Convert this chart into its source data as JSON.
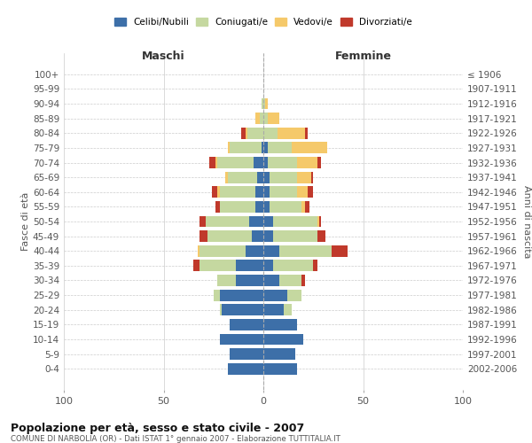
{
  "age_groups": [
    "0-4",
    "5-9",
    "10-14",
    "15-19",
    "20-24",
    "25-29",
    "30-34",
    "35-39",
    "40-44",
    "45-49",
    "50-54",
    "55-59",
    "60-64",
    "65-69",
    "70-74",
    "75-79",
    "80-84",
    "85-89",
    "90-94",
    "95-99",
    "100+"
  ],
  "birth_years": [
    "2002-2006",
    "1997-2001",
    "1992-1996",
    "1987-1991",
    "1982-1986",
    "1977-1981",
    "1972-1976",
    "1967-1971",
    "1962-1966",
    "1957-1961",
    "1952-1956",
    "1947-1951",
    "1942-1946",
    "1937-1941",
    "1932-1936",
    "1927-1931",
    "1922-1926",
    "1917-1921",
    "1912-1916",
    "1907-1911",
    "≤ 1906"
  ],
  "male": {
    "celibi": [
      18,
      17,
      22,
      17,
      21,
      22,
      14,
      14,
      9,
      6,
      7,
      4,
      4,
      3,
      5,
      1,
      0,
      0,
      0,
      0,
      0
    ],
    "coniugati": [
      0,
      0,
      0,
      0,
      1,
      3,
      9,
      18,
      23,
      22,
      22,
      18,
      18,
      15,
      18,
      16,
      8,
      2,
      1,
      0,
      0
    ],
    "vedovi": [
      0,
      0,
      0,
      0,
      0,
      0,
      0,
      0,
      1,
      0,
      0,
      0,
      1,
      1,
      1,
      1,
      1,
      2,
      0,
      0,
      0
    ],
    "divorziati": [
      0,
      0,
      0,
      0,
      0,
      0,
      0,
      3,
      0,
      4,
      3,
      2,
      3,
      0,
      3,
      0,
      2,
      0,
      0,
      0,
      0
    ]
  },
  "female": {
    "nubili": [
      17,
      16,
      20,
      17,
      10,
      12,
      8,
      5,
      8,
      5,
      5,
      3,
      3,
      3,
      2,
      2,
      0,
      0,
      0,
      0,
      0
    ],
    "coniugate": [
      0,
      0,
      0,
      0,
      4,
      7,
      11,
      20,
      26,
      22,
      22,
      16,
      14,
      14,
      15,
      12,
      7,
      2,
      1,
      0,
      0
    ],
    "vedove": [
      0,
      0,
      0,
      0,
      0,
      0,
      0,
      0,
      0,
      0,
      1,
      2,
      5,
      7,
      10,
      18,
      14,
      6,
      1,
      0,
      0
    ],
    "divorziate": [
      0,
      0,
      0,
      0,
      0,
      0,
      2,
      2,
      8,
      4,
      1,
      2,
      3,
      1,
      2,
      0,
      1,
      0,
      0,
      0,
      0
    ]
  },
  "colors": {
    "celibi": "#3d6fa8",
    "coniugati": "#c5d8a0",
    "vedovi": "#f5c96a",
    "divorziati": "#c0392b"
  },
  "xlim": 100,
  "title": "Popolazione per età, sesso e stato civile - 2007",
  "subtitle": "COMUNE DI NARBOLIA (OR) - Dati ISTAT 1° gennaio 2007 - Elaborazione TUTTITALIA.IT",
  "xlabel_left": "Maschi",
  "xlabel_right": "Femmine",
  "ylabel_left": "Fasce di età",
  "ylabel_right": "Anni di nascita",
  "legend_labels": [
    "Celibi/Nubili",
    "Coniugati/e",
    "Vedovi/e",
    "Divorziati/e"
  ],
  "background_color": "#ffffff",
  "grid_color": "#cccccc"
}
